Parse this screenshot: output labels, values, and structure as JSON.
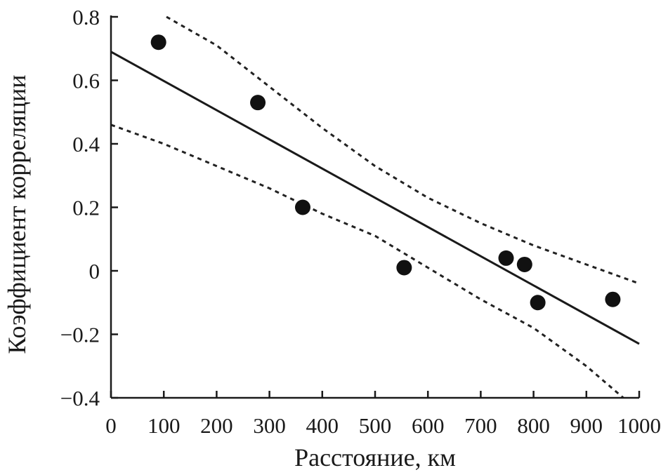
{
  "chart_data": {
    "type": "scatter",
    "xlabel": "Расстояние, км",
    "ylabel": "Коэффициент корреляции",
    "xlim": [
      0,
      1000
    ],
    "ylim": [
      -0.4,
      0.8
    ],
    "xticks": [
      0,
      100,
      200,
      300,
      400,
      500,
      600,
      700,
      800,
      900,
      1000
    ],
    "xtick_labels": [
      "0",
      "100",
      "200",
      "300",
      "400",
      "500",
      "600",
      "700",
      "800",
      "900",
      "1000"
    ],
    "yticks": [
      -0.4,
      -0.2,
      0,
      0.2,
      0.4,
      0.6,
      0.8
    ],
    "ytick_labels": [
      "−0.4",
      "−0.2",
      "0",
      "0.2",
      "0.4",
      "0.6",
      "0.8"
    ],
    "grid": false,
    "points": [
      {
        "x": 90,
        "y": 0.72
      },
      {
        "x": 278,
        "y": 0.53
      },
      {
        "x": 363,
        "y": 0.2
      },
      {
        "x": 555,
        "y": 0.01
      },
      {
        "x": 748,
        "y": 0.04
      },
      {
        "x": 783,
        "y": 0.02
      },
      {
        "x": 808,
        "y": -0.1
      },
      {
        "x": 950,
        "y": -0.09
      }
    ],
    "regression_line": [
      {
        "x": 0,
        "y": 0.69
      },
      {
        "x": 1000,
        "y": -0.23
      }
    ],
    "upper_bound": [
      {
        "x": 105,
        "y": 0.8
      },
      {
        "x": 200,
        "y": 0.71
      },
      {
        "x": 300,
        "y": 0.58
      },
      {
        "x": 400,
        "y": 0.45
      },
      {
        "x": 500,
        "y": 0.33
      },
      {
        "x": 600,
        "y": 0.23
      },
      {
        "x": 700,
        "y": 0.15
      },
      {
        "x": 800,
        "y": 0.08
      },
      {
        "x": 900,
        "y": 0.02
      },
      {
        "x": 1000,
        "y": -0.04
      }
    ],
    "lower_bound": [
      {
        "x": 0,
        "y": 0.46
      },
      {
        "x": 100,
        "y": 0.4
      },
      {
        "x": 200,
        "y": 0.33
      },
      {
        "x": 300,
        "y": 0.26
      },
      {
        "x": 400,
        "y": 0.18
      },
      {
        "x": 500,
        "y": 0.11
      },
      {
        "x": 600,
        "y": 0.01
      },
      {
        "x": 700,
        "y": -0.09
      },
      {
        "x": 800,
        "y": -0.18
      },
      {
        "x": 900,
        "y": -0.3
      },
      {
        "x": 970,
        "y": -0.4
      }
    ]
  }
}
